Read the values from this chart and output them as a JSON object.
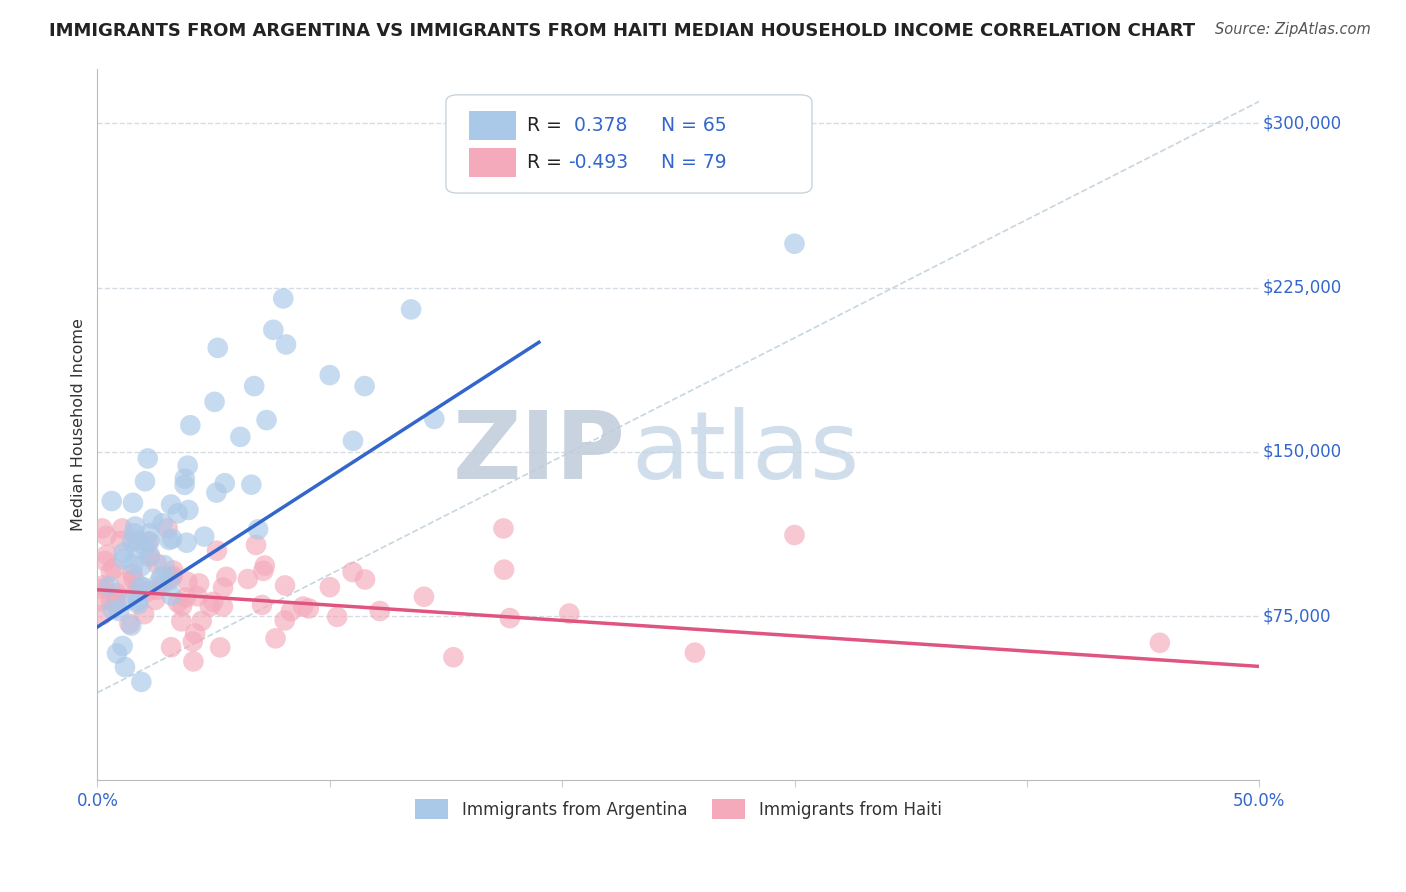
{
  "title": "IMMIGRANTS FROM ARGENTINA VS IMMIGRANTS FROM HAITI MEDIAN HOUSEHOLD INCOME CORRELATION CHART",
  "source": "Source: ZipAtlas.com",
  "ylabel": "Median Household Income",
  "xlim": [
    0.0,
    0.5
  ],
  "ylim": [
    0,
    325000
  ],
  "ytick_vals": [
    75000,
    150000,
    225000,
    300000
  ],
  "ytick_labels": [
    "$75,000",
    "$150,000",
    "$225,000",
    "$300,000"
  ],
  "argentina_R": 0.378,
  "argentina_N": 65,
  "haiti_R": -0.493,
  "haiti_N": 79,
  "argentina_color": "#aac8e8",
  "haiti_color": "#f4aabb",
  "argentina_line_color": "#3366cc",
  "haiti_line_color": "#e05580",
  "ref_line_color": "#b8ccd8",
  "background_color": "#ffffff",
  "grid_color": "#d0d8e0",
  "watermark_zip_color": "#c0ccda",
  "watermark_atlas_color": "#c8d8e8",
  "legend_value_color": "#3366cc",
  "legend_label_color": "#222222"
}
